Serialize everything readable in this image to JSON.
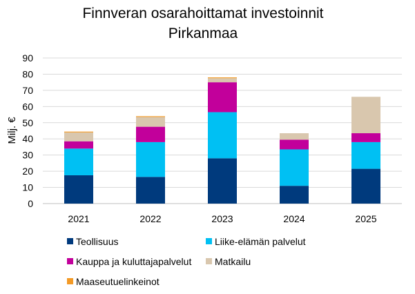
{
  "chart_data": {
    "type": "bar",
    "stacked": true,
    "title_lines": [
      "Finnveran osarahoittamat investoinnit",
      "Pirkanmaa"
    ],
    "ylabel": "Milj. €",
    "xlabel": "",
    "ylim": [
      0,
      90
    ],
    "yticks": [
      0,
      10,
      20,
      30,
      40,
      50,
      60,
      70,
      80,
      90
    ],
    "grid": true,
    "categories": [
      "2021",
      "2022",
      "2023",
      "2024",
      "2025"
    ],
    "series": [
      {
        "name": "Teollisuus",
        "color": "#003a7d",
        "values": [
          17.5,
          16.5,
          28,
          11,
          21.5
        ]
      },
      {
        "name": "Liike-elämän palvelut",
        "color": "#00c0f3",
        "values": [
          16.5,
          21.5,
          28.5,
          22.5,
          16.5
        ]
      },
      {
        "name": "Kauppa ja kuluttajapalvelut",
        "color": "#c2009b",
        "values": [
          4.5,
          9.5,
          18.5,
          6,
          5.5
        ]
      },
      {
        "name": "Matkailu",
        "color": "#d9c7ae",
        "values": [
          5.5,
          6,
          2.5,
          4,
          22.5
        ]
      },
      {
        "name": "Maaseutuelinkeinot",
        "color": "#f39a26",
        "values": [
          0.5,
          0.5,
          0.5,
          0,
          0
        ]
      }
    ],
    "legend_position": "bottom"
  }
}
